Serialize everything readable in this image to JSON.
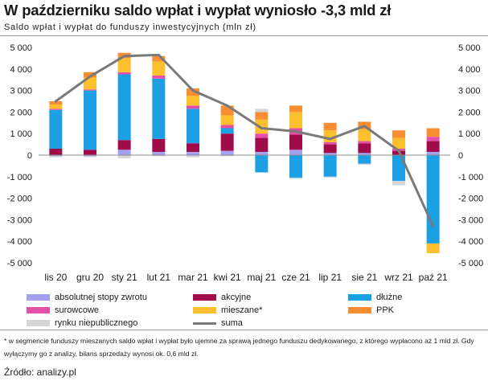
{
  "title": "W październiku saldo wpłat i wypłat wyniosło -3,3 mld zł",
  "subtitle": "Saldo wpłat i wypłat do funduszy inwestycyjnych (mln zł)",
  "footnote": "* w segmencie funduszy mieszanych saldo wpłat i wypłat było ujemne za sprawą jednego funduszu dedykowanego, z którego wypłacono aż 1 mld zł. Gdy wyłączymy go z analizy, bilans sprzedaży wynosi ok. 0,6 mld zł.",
  "source": "Źródło: analizy.pl",
  "colors": {
    "absolutnej": "#a3a0ef",
    "akcyjne": "#a10b4a",
    "dluzne": "#1b9fe5",
    "surowcowe": "#e64fa8",
    "mieszane": "#fcc02f",
    "ppk": "#f88e32",
    "rynku": "#d6d6d6",
    "suma": "#7a7a7a"
  },
  "chart_data": {
    "type": "bar",
    "stacked": true,
    "categories": [
      "lis 20",
      "gru 20",
      "sty 21",
      "lut 21",
      "mar 21",
      "kwi 21",
      "maj 21",
      "cze 21",
      "lip 21",
      "sie 21",
      "wrz 21",
      "paź 21"
    ],
    "ylim": [
      -5000,
      5000
    ],
    "yticks": [
      -5000,
      -4000,
      -3000,
      -2000,
      -1000,
      0,
      1000,
      2000,
      3000,
      4000,
      5000
    ],
    "ytick_labels": [
      "-5 000",
      "-4 000",
      "-3 000",
      "-2 000",
      "-1 000",
      "0",
      "1 000",
      "2 000",
      "3 000",
      "4 000",
      "5 000"
    ],
    "secondary_axis": true,
    "grid": false,
    "legend_position": "bottom",
    "series": [
      {
        "name": "absolutnej stopy zwrotu",
        "key": "absolutnej",
        "values": [
          -50,
          -50,
          250,
          150,
          150,
          200,
          150,
          250,
          100,
          100,
          0,
          150
        ]
      },
      {
        "name": "akcyjne",
        "key": "akcyjne",
        "values": [
          300,
          250,
          450,
          600,
          400,
          800,
          650,
          700,
          400,
          450,
          200,
          500
        ]
      },
      {
        "name": "dłużne",
        "key": "dluzne",
        "values": [
          1800,
          2750,
          3050,
          2800,
          1600,
          250,
          -800,
          -1050,
          -1000,
          -400,
          -1200,
          -4100
        ]
      },
      {
        "name": "surowcowe",
        "key": "surowcowe",
        "values": [
          50,
          50,
          100,
          150,
          150,
          150,
          200,
          300,
          100,
          100,
          100,
          200
        ]
      },
      {
        "name": "mieszane*",
        "key": "mieszane",
        "values": [
          200,
          550,
          650,
          650,
          450,
          450,
          650,
          750,
          550,
          550,
          500,
          -450
        ]
      },
      {
        "name": "PPK",
        "key": "ppk",
        "values": [
          150,
          250,
          250,
          250,
          350,
          450,
          350,
          300,
          350,
          350,
          350,
          400
        ]
      },
      {
        "name": "rynku niepublicznego",
        "key": "rynku",
        "values": [
          -50,
          -50,
          -150,
          -50,
          -100,
          -50,
          150,
          -50,
          -50,
          -50,
          -200,
          0
        ]
      }
    ],
    "line": {
      "name": "suma",
      "key": "suma",
      "values": [
        2500,
        3650,
        4600,
        4650,
        3000,
        2300,
        1250,
        1100,
        750,
        1350,
        200,
        -3300
      ]
    }
  }
}
